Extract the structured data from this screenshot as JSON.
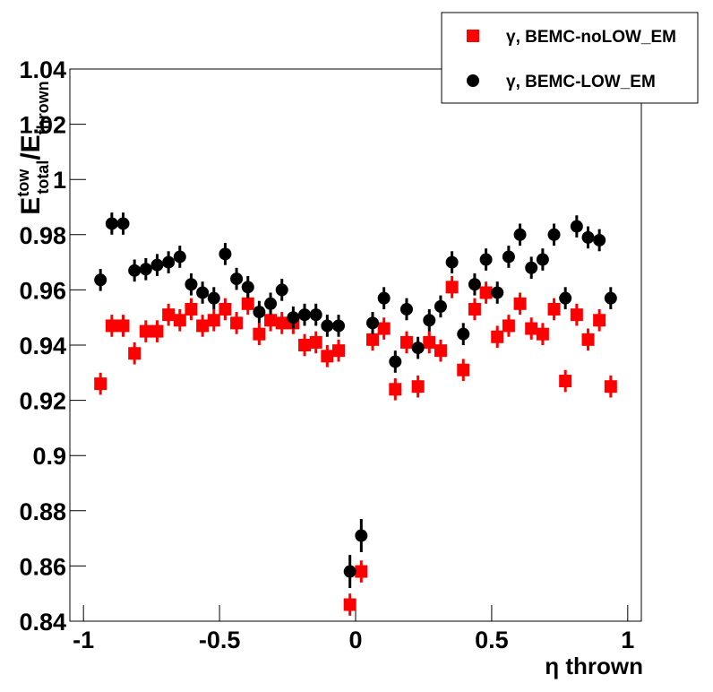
{
  "chart_data": {
    "type": "scatter",
    "ylabel_parts": [
      "E",
      "tow",
      "total",
      "/E",
      "thrown"
    ],
    "xlabel": "η thrown",
    "legend": "top-right",
    "x": [
      -0.9375,
      -0.8958,
      -0.8542,
      -0.8125,
      -0.7708,
      -0.7292,
      -0.6875,
      -0.6458,
      -0.6042,
      -0.5625,
      -0.5208,
      -0.4792,
      -0.4375,
      -0.3958,
      -0.3542,
      -0.3125,
      -0.2708,
      -0.2292,
      -0.1875,
      -0.1458,
      -0.1042,
      -0.0625,
      -0.0208,
      0.0208,
      0.0625,
      0.1042,
      0.1458,
      0.1875,
      0.2292,
      0.2708,
      0.3125,
      0.3542,
      0.3958,
      0.4375,
      0.4792,
      0.5208,
      0.5625,
      0.6042,
      0.6458,
      0.6875,
      0.7292,
      0.7708,
      0.8125,
      0.8542,
      0.8958,
      0.9375
    ],
    "series": [
      {
        "name": "γ, BEMC-noLOW_EM",
        "color": "#ff0000",
        "marker": "square",
        "values": [
          0.926,
          0.947,
          0.947,
          0.937,
          0.945,
          0.945,
          0.951,
          0.949,
          0.953,
          0.947,
          0.949,
          0.953,
          0.948,
          0.955,
          0.944,
          0.949,
          0.948,
          0.948,
          0.94,
          0.941,
          0.936,
          0.938,
          0.846,
          0.858,
          0.942,
          0.946,
          0.924,
          0.941,
          0.925,
          0.941,
          0.938,
          0.961,
          0.931,
          0.953,
          0.959,
          0.943,
          0.947,
          0.955,
          0.946,
          0.944,
          0.953,
          0.927,
          0.951,
          0.942,
          0.949,
          0.925
        ],
        "errors": [
          0.004,
          0.004,
          0.004,
          0.004,
          0.004,
          0.004,
          0.004,
          0.004,
          0.004,
          0.004,
          0.004,
          0.004,
          0.004,
          0.004,
          0.004,
          0.004,
          0.004,
          0.004,
          0.004,
          0.004,
          0.004,
          0.004,
          0.004,
          0.004,
          0.004,
          0.004,
          0.004,
          0.004,
          0.004,
          0.004,
          0.004,
          0.004,
          0.004,
          0.004,
          0.004,
          0.004,
          0.004,
          0.004,
          0.004,
          0.004,
          0.004,
          0.004,
          0.004,
          0.004,
          0.004,
          0.004
        ]
      },
      {
        "name": "γ, BEMC-LOW_EM",
        "color": "#000000",
        "marker": "circle",
        "values": [
          0.9636,
          0.984,
          0.984,
          0.967,
          0.9675,
          0.969,
          0.97,
          0.972,
          0.962,
          0.959,
          0.957,
          0.973,
          0.964,
          0.961,
          0.952,
          0.955,
          0.96,
          0.95,
          0.951,
          0.951,
          0.947,
          0.947,
          0.858,
          0.871,
          0.948,
          0.957,
          0.934,
          0.953,
          0.939,
          0.949,
          0.954,
          0.97,
          0.944,
          0.962,
          0.971,
          0.959,
          0.972,
          0.98,
          0.968,
          0.971,
          0.98,
          0.957,
          0.983,
          0.979,
          0.978,
          0.957
        ],
        "errors": [
          0.004,
          0.004,
          0.004,
          0.004,
          0.004,
          0.004,
          0.004,
          0.004,
          0.004,
          0.004,
          0.004,
          0.004,
          0.004,
          0.004,
          0.004,
          0.004,
          0.004,
          0.004,
          0.004,
          0.004,
          0.004,
          0.004,
          0.006,
          0.006,
          0.004,
          0.004,
          0.004,
          0.004,
          0.004,
          0.004,
          0.004,
          0.004,
          0.004,
          0.004,
          0.004,
          0.004,
          0.004,
          0.004,
          0.004,
          0.004,
          0.004,
          0.004,
          0.004,
          0.004,
          0.004,
          0.004
        ]
      }
    ],
    "xlim": [
      -1.05,
      1.05
    ],
    "xticks": [
      -1,
      -0.5,
      0,
      0.5,
      1
    ],
    "ylim": [
      0.84,
      1.04
    ],
    "yticks": [
      0.84,
      0.86,
      0.88,
      0.9,
      0.92,
      0.94,
      0.96,
      0.98,
      1,
      1.02,
      1.04
    ]
  }
}
